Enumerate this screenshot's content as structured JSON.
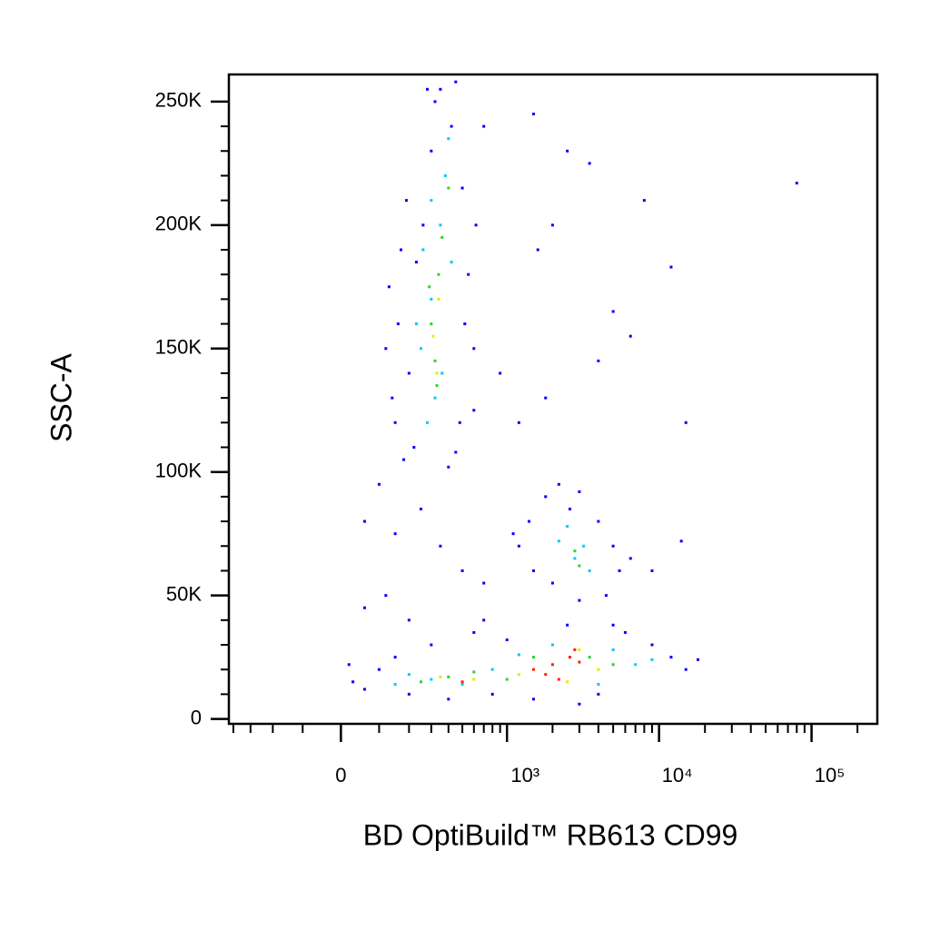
{
  "chart_data": {
    "type": "scatter",
    "xlabel": "BD OptiBuild™ RB613 CD99",
    "ylabel": "SSC-A",
    "xscale": "biexponential",
    "xlim": [
      -430,
      270000
    ],
    "ylim": [
      -2000,
      261000
    ],
    "xticks": [
      0,
      {
        "value": 1000,
        "label": "10³"
      },
      {
        "value": 10000,
        "label": "10⁴"
      },
      {
        "value": 100000,
        "label": "10⁵"
      }
    ],
    "xminorticks": [
      -400,
      -300,
      -200,
      -100,
      100,
      200,
      300,
      400,
      500,
      600,
      700,
      800,
      900,
      2000,
      3000,
      4000,
      5000,
      6000,
      7000,
      8000,
      9000,
      20000,
      30000,
      40000,
      50000,
      60000,
      70000,
      80000,
      90000,
      200000
    ],
    "yticks": [
      0,
      {
        "value": 50000,
        "label": "50K"
      },
      {
        "value": 100000,
        "label": "100K"
      },
      {
        "value": 150000,
        "label": "150K"
      },
      {
        "value": 200000,
        "label": "200K"
      },
      {
        "value": 250000,
        "label": "250K"
      }
    ],
    "yminorticks": [
      10000,
      20000,
      30000,
      40000,
      60000,
      70000,
      80000,
      90000,
      110000,
      120000,
      130000,
      140000,
      160000,
      170000,
      180000,
      190000,
      210000,
      220000,
      230000,
      240000
    ],
    "series": [
      {
        "color": "#0000ff",
        "x": [
          150,
          180,
          200,
          160,
          140,
          220,
          260,
          300,
          320,
          350,
          420,
          500,
          550,
          600,
          480,
          400,
          130,
          190,
          230,
          520,
          620,
          700,
          280,
          450,
          170,
          450,
          120,
          600,
          1500,
          2500,
          3500,
          8000,
          80000,
          12000,
          5000,
          6500,
          2000,
          1600,
          15000,
          4000,
          1800,
          900,
          1200,
          100,
          60,
          150,
          250,
          350,
          500,
          700,
          120,
          200,
          60,
          1200,
          1400,
          1800,
          2200,
          3000,
          4000,
          5000,
          5500,
          4500,
          3000,
          2000,
          1500,
          1100,
          2600,
          6500,
          9000,
          14000,
          30,
          60,
          100,
          150,
          200,
          300,
          400,
          600,
          800,
          1000,
          1500,
          2500,
          4000,
          6000,
          9000,
          12000,
          15000,
          18000,
          5000,
          3000,
          20,
          700
        ],
        "y": [
          120000,
          105000,
          140000,
          160000,
          130000,
          110000,
          200000,
          230000,
          250000,
          255000,
          240000,
          215000,
          180000,
          150000,
          120000,
          102000,
          175000,
          210000,
          185000,
          160000,
          200000,
          240000,
          255000,
          258000,
          190000,
          108000,
          150000,
          125000,
          245000,
          230000,
          225000,
          210000,
          217000,
          183000,
          165000,
          155000,
          200000,
          190000,
          120000,
          145000,
          130000,
          140000,
          120000,
          95000,
          80000,
          75000,
          85000,
          70000,
          60000,
          55000,
          50000,
          40000,
          45000,
          70000,
          80000,
          90000,
          95000,
          92000,
          80000,
          70000,
          60000,
          50000,
          48000,
          55000,
          60000,
          75000,
          85000,
          65000,
          60000,
          72000,
          15000,
          12000,
          20000,
          25000,
          10000,
          30000,
          8000,
          35000,
          10000,
          32000,
          8000,
          38000,
          10000,
          35000,
          30000,
          25000,
          20000,
          24000,
          38000,
          6000,
          22000,
          40000
        ]
      },
      {
        "color": "#00c8ff",
        "x": [
          250,
          300,
          350,
          320,
          380,
          280,
          420,
          230,
          360,
          400,
          300,
          260,
          2200,
          2800,
          3200,
          2500,
          3500,
          200,
          300,
          500,
          800,
          1200,
          2000,
          5000,
          7000,
          4000,
          150,
          9000
        ],
        "y": [
          150000,
          170000,
          200000,
          130000,
          220000,
          120000,
          185000,
          160000,
          140000,
          235000,
          210000,
          190000,
          72000,
          65000,
          70000,
          78000,
          60000,
          18000,
          16000,
          14000,
          20000,
          26000,
          30000,
          28000,
          22000,
          14000,
          14000,
          24000
        ]
      },
      {
        "color": "#30d030",
        "x": [
          300,
          340,
          320,
          360,
          290,
          400,
          330,
          2800,
          3000,
          400,
          600,
          1000,
          1500,
          3500,
          5000,
          250
        ],
        "y": [
          160000,
          180000,
          145000,
          195000,
          175000,
          215000,
          135000,
          68000,
          62000,
          17000,
          19000,
          16000,
          25000,
          25000,
          22000,
          15000
        ]
      },
      {
        "color": "#e8e800",
        "x": [
          310,
          340,
          330,
          600,
          1200,
          2500,
          3000,
          4000,
          350
        ],
        "y": [
          155000,
          170000,
          140000,
          16000,
          18000,
          15000,
          28000,
          20000,
          17000
        ]
      },
      {
        "color": "#ff2000",
        "x": [
          1800,
          2000,
          2200,
          2600,
          3000,
          1500,
          500,
          2800
        ],
        "y": [
          18000,
          22000,
          16000,
          25000,
          23000,
          20000,
          15000,
          28000
        ]
      }
    ]
  }
}
